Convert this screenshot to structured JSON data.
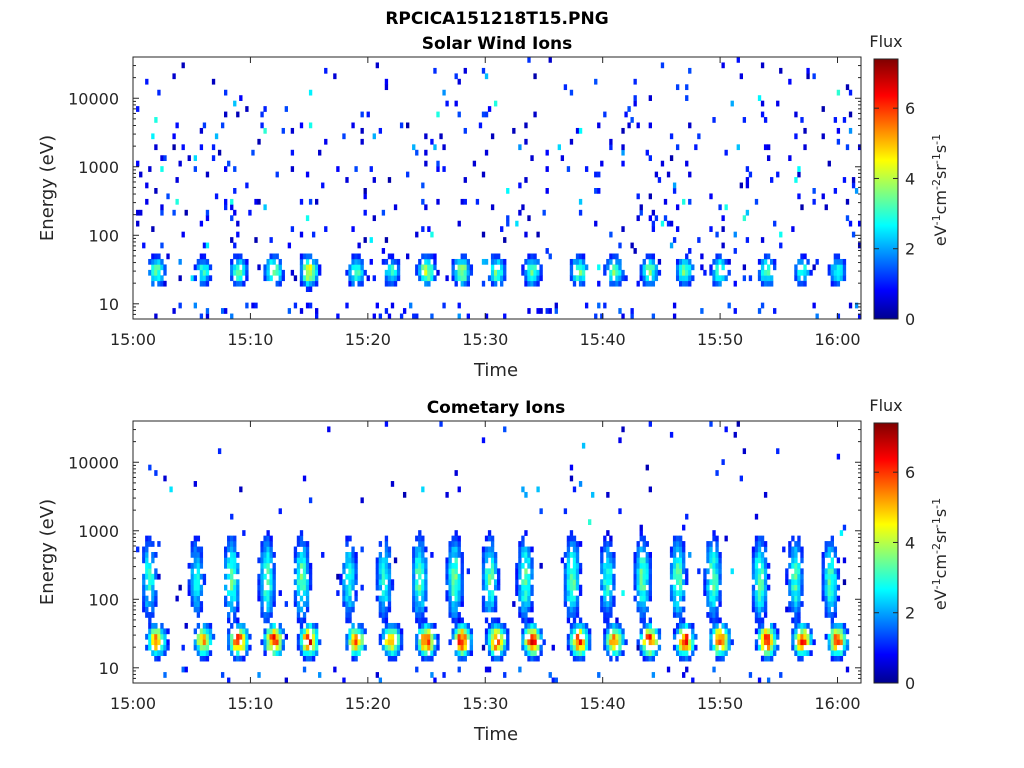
{
  "figure": {
    "title": "RPCICA151218T15.PNG"
  },
  "chart_data": [
    {
      "type": "heatmap",
      "title": "Solar Wind Ions",
      "xlabel": "Time",
      "ylabel": "Energy (eV)",
      "yscale": "log",
      "xlim": [
        "15:00",
        "16:02"
      ],
      "ylim": [
        6,
        40000
      ],
      "x_ticks": [
        "15:00",
        "15:10",
        "15:20",
        "15:30",
        "15:40",
        "15:50",
        "16:00"
      ],
      "y_ticks": [
        "10",
        "100",
        "1000",
        "10000"
      ],
      "y_tick_values": [
        10,
        100,
        1000,
        10000
      ],
      "colorbar": {
        "label": "Flux",
        "unit_label": "eV-1cm-2sr-1s-1",
        "ticks": [
          "0",
          "2",
          "4",
          "6"
        ],
        "range": [
          0,
          7.4
        ],
        "colormap": "jet"
      },
      "band_peaks": [
        {
          "time": "15:02",
          "energy": 30,
          "flux": 3.5
        },
        {
          "time": "15:06",
          "energy": 30,
          "flux": 3
        },
        {
          "time": "15:09",
          "energy": 30,
          "flux": 3.5
        },
        {
          "time": "15:12",
          "energy": 30,
          "flux": 4
        },
        {
          "time": "15:15",
          "energy": 30,
          "flux": 4.5
        },
        {
          "time": "15:19",
          "energy": 30,
          "flux": 3.5
        },
        {
          "time": "15:22",
          "energy": 30,
          "flux": 3
        },
        {
          "time": "15:25",
          "energy": 30,
          "flux": 4
        },
        {
          "time": "15:28",
          "energy": 30,
          "flux": 4
        },
        {
          "time": "15:31",
          "energy": 30,
          "flux": 3.5
        },
        {
          "time": "15:34",
          "energy": 30,
          "flux": 3.5
        },
        {
          "time": "15:38",
          "energy": 30,
          "flux": 3.5
        },
        {
          "time": "15:41",
          "energy": 30,
          "flux": 3.5
        },
        {
          "time": "15:44",
          "energy": 30,
          "flux": 3.5
        },
        {
          "time": "15:47",
          "energy": 30,
          "flux": 3.5
        },
        {
          "time": "15:50",
          "energy": 30,
          "flux": 3.5
        },
        {
          "time": "15:54",
          "energy": 30,
          "flux": 3.5
        },
        {
          "time": "15:57",
          "energy": 30,
          "flux": 3
        },
        {
          "time": "16:00",
          "energy": 30,
          "flux": 3
        }
      ]
    },
    {
      "type": "heatmap",
      "title": "Cometary Ions",
      "xlabel": "Time",
      "ylabel": "Energy (eV)",
      "yscale": "log",
      "xlim": [
        "15:00",
        "16:02"
      ],
      "ylim": [
        6,
        40000
      ],
      "x_ticks": [
        "15:00",
        "15:10",
        "15:20",
        "15:30",
        "15:40",
        "15:50",
        "16:00"
      ],
      "y_ticks": [
        "10",
        "100",
        "1000",
        "10000"
      ],
      "y_tick_values": [
        10,
        100,
        1000,
        10000
      ],
      "colorbar": {
        "label": "Flux",
        "unit_label": "eV-1cm-2sr-1s-1",
        "ticks": [
          "0",
          "2",
          "4",
          "6"
        ],
        "range": [
          0,
          7.4
        ],
        "colormap": "jet"
      },
      "band_peaks": [
        {
          "time": "15:02",
          "energy": 25,
          "flux": 5.5
        },
        {
          "time": "15:06",
          "energy": 25,
          "flux": 5
        },
        {
          "time": "15:09",
          "energy": 25,
          "flux": 6.3
        },
        {
          "time": "15:12",
          "energy": 25,
          "flux": 6.3
        },
        {
          "time": "15:15",
          "energy": 25,
          "flux": 6.3
        },
        {
          "time": "15:19",
          "energy": 25,
          "flux": 5.5
        },
        {
          "time": "15:22",
          "energy": 25,
          "flux": 5.5
        },
        {
          "time": "15:25",
          "energy": 25,
          "flux": 6.3
        },
        {
          "time": "15:28",
          "energy": 25,
          "flux": 6.3
        },
        {
          "time": "15:31",
          "energy": 25,
          "flux": 6.3
        },
        {
          "time": "15:34",
          "energy": 25,
          "flux": 6.3
        },
        {
          "time": "15:38",
          "energy": 25,
          "flux": 6.3
        },
        {
          "time": "15:41",
          "energy": 25,
          "flux": 5.5
        },
        {
          "time": "15:44",
          "energy": 25,
          "flux": 6.3
        },
        {
          "time": "15:47",
          "energy": 25,
          "flux": 6.3
        },
        {
          "time": "15:50",
          "energy": 25,
          "flux": 6.3
        },
        {
          "time": "15:54",
          "energy": 25,
          "flux": 6.3
        },
        {
          "time": "15:57",
          "energy": 25,
          "flux": 6
        },
        {
          "time": "16:00",
          "energy": 25,
          "flux": 6
        }
      ]
    }
  ]
}
